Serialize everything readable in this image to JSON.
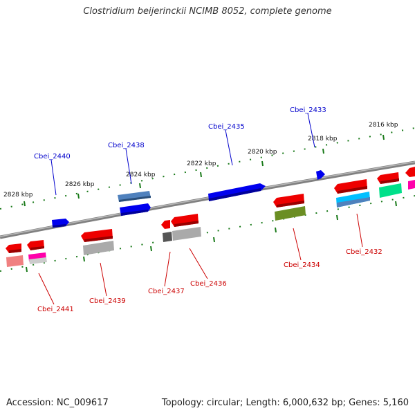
{
  "title": "Clostridium beijerinckii NCIMB 8052, complete genome",
  "footer": {
    "accession": "Accession: NC_009617",
    "summary": "Topology: circular; Length: 6,000,632 bp; Genes: 5,160"
  },
  "colors": {
    "forward_label": "#0000cc",
    "reverse_label": "#cc0000",
    "backbone": "#808080",
    "ticks": "#1a7a1a"
  },
  "scale_labels": [
    "2828 kbp",
    "2826 kbp",
    "2824 kbp",
    "2822 kbp",
    "2820 kbp",
    "2818 kbp",
    "2816 kbp"
  ],
  "forward_genes": [
    {
      "label": "Cbei_2440",
      "color": "#0000ee"
    },
    {
      "label": "Cbei_2438",
      "color": "#0000ee"
    },
    {
      "label": "Cbei_2435",
      "color": "#0000ee"
    },
    {
      "label": "Cbei_2433",
      "color": "#0000ee"
    }
  ],
  "reverse_genes": [
    {
      "label": "Cbei_2441",
      "color": "#ee0000"
    },
    {
      "label": "Cbei_2439",
      "color": "#ee0000"
    },
    {
      "label": "Cbei_2437",
      "color": "#ee0000"
    },
    {
      "label": "Cbei_2436",
      "color": "#ee0000"
    },
    {
      "label": "Cbei_2434",
      "color": "#ee0000"
    },
    {
      "label": "Cbei_2432",
      "color": "#ee0000"
    }
  ],
  "feature_colors": {
    "blue_feature": "#4f81bd",
    "gray_feature": "#aaaaaa",
    "dark_gray_feature": "#555555",
    "olive_feature": "#6b8e23",
    "cyan_feature": "#00bfff",
    "green_feature": "#00e08a",
    "magenta_feature": "#ff00aa",
    "pink_feature": "#f08080"
  }
}
